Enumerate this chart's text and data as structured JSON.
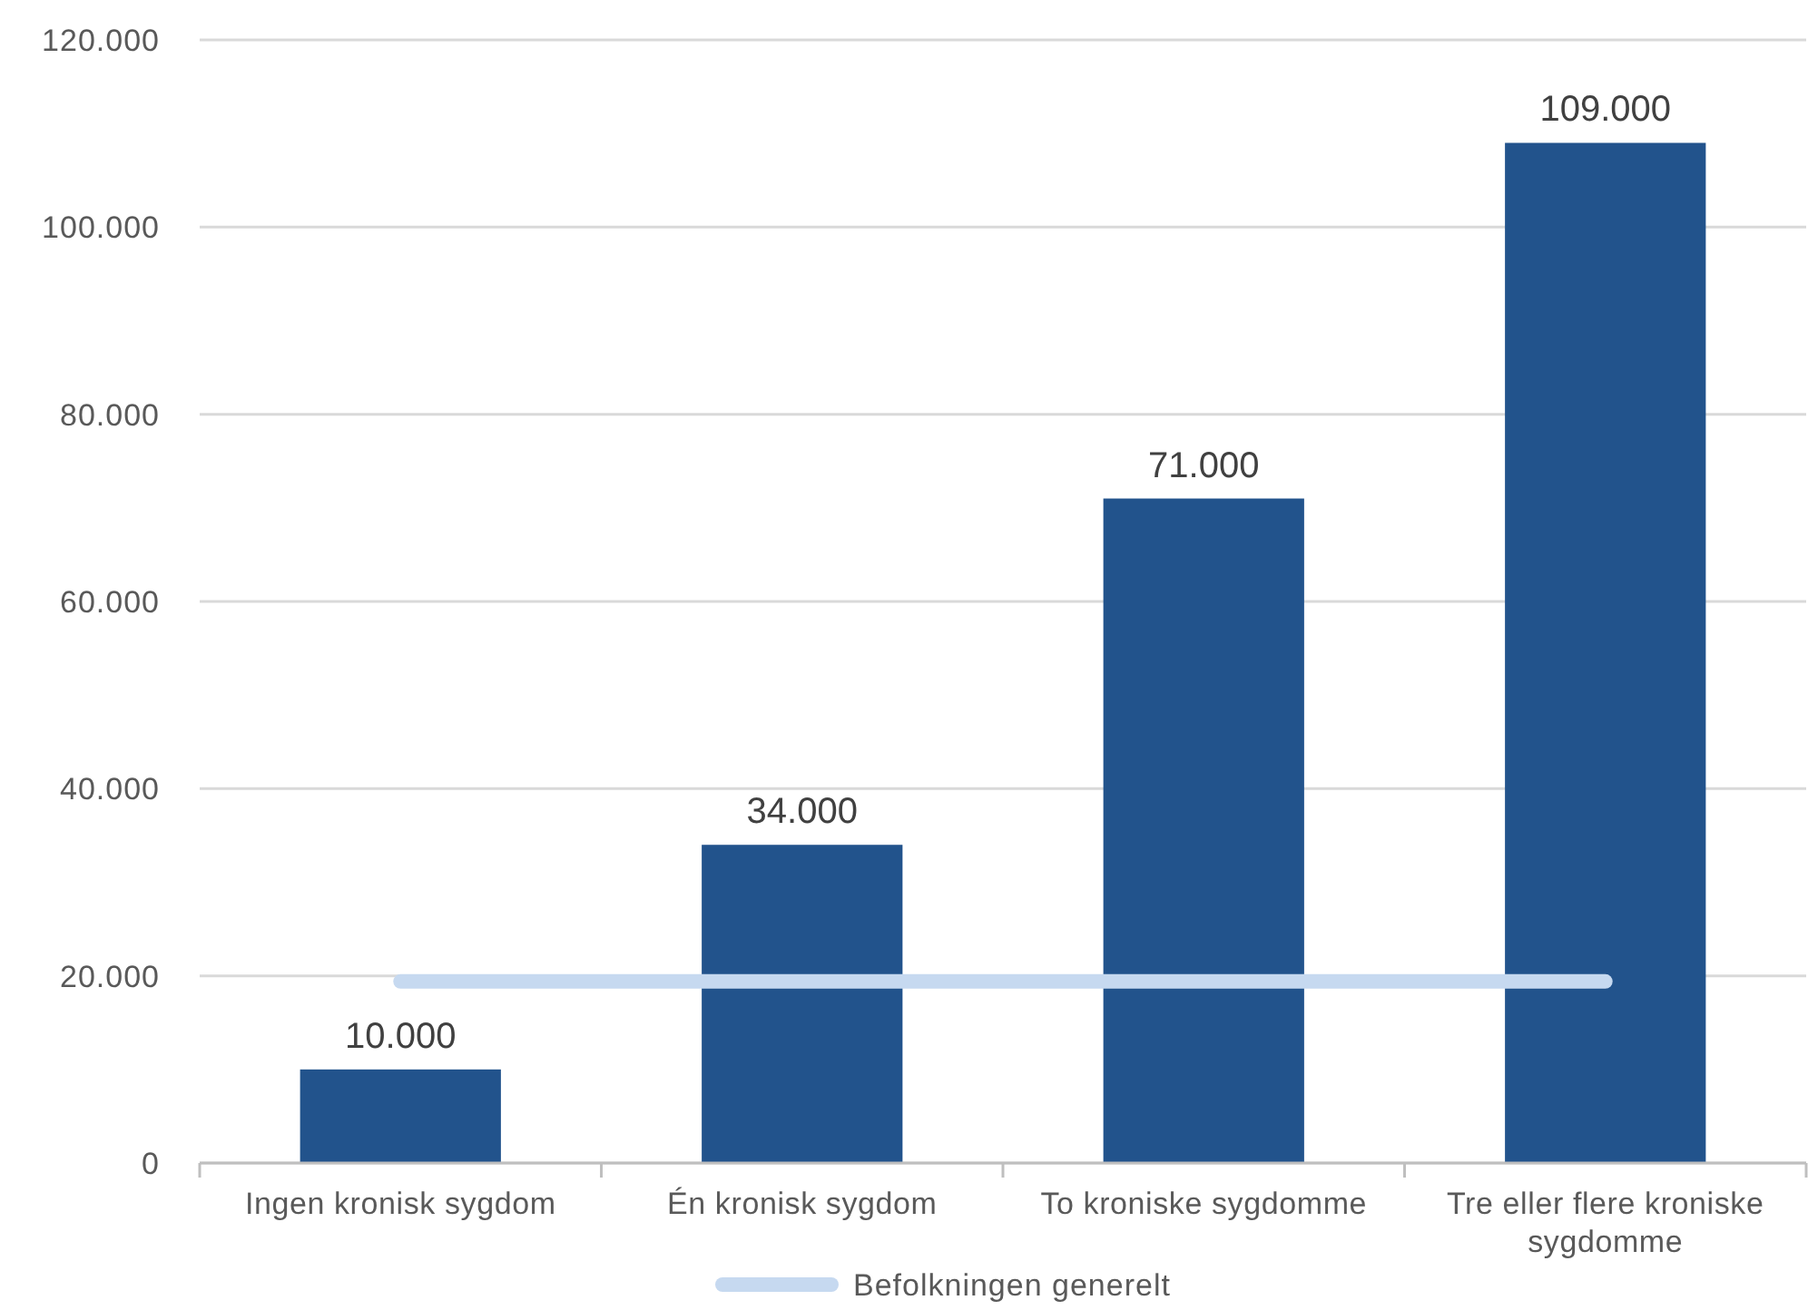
{
  "chart_data": {
    "type": "bar",
    "categories": [
      "Ingen kronisk sygdom",
      "Én kronisk sygdom",
      "To kroniske sygdomme",
      "Tre eller flere kroniske sygdomme"
    ],
    "series": [
      {
        "color": "#22538c",
        "values": [
          10000,
          34000,
          71000,
          109000
        ],
        "value_labels": [
          "10.000",
          "34.000",
          "71.000",
          "109.000"
        ]
      },
      {
        "type": "line",
        "name": "Befolkningen generelt",
        "color": "#c6d9f0",
        "values": [
          19400,
          19400,
          19400,
          19400
        ]
      }
    ],
    "ylim": [
      0,
      120000
    ],
    "yticks": [
      {
        "value": 0,
        "label": "0"
      },
      {
        "value": 20000,
        "label": "20.000"
      },
      {
        "value": 40000,
        "label": "40.000"
      },
      {
        "value": 60000,
        "label": "60.000"
      },
      {
        "value": 80000,
        "label": "80.000"
      },
      {
        "value": 100000,
        "label": "100.000"
      },
      {
        "value": 120000,
        "label": "120.000"
      }
    ],
    "grid": "y",
    "legend": "bottom",
    "marker": "none",
    "line_style": "solid"
  }
}
